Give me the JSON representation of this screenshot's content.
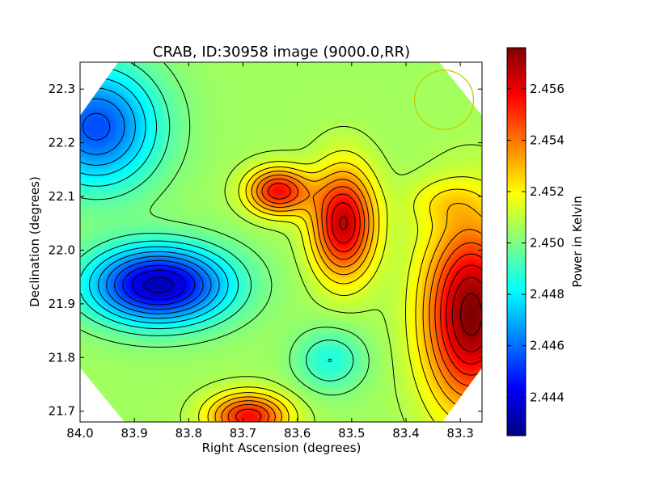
{
  "chart_data": {
    "type": "heatmap",
    "title": "CRAB, ID:30958 image (9000.0,RR)",
    "xlabel": "Right Ascension (degrees)",
    "ylabel": "Declination (degrees)",
    "colorbar_label": "Power in Kelvin",
    "colormap": "jet",
    "contours": true,
    "xlim": [
      84.0,
      83.26
    ],
    "ylim": [
      21.68,
      22.35
    ],
    "x_ticks": [
      84.0,
      83.9,
      83.8,
      83.7,
      83.6,
      83.5,
      83.4,
      83.3
    ],
    "x_tick_labels": [
      "84.0",
      "83.9",
      "83.8",
      "83.7",
      "83.6",
      "83.5",
      "83.4",
      "83.3"
    ],
    "y_ticks": [
      21.7,
      21.8,
      21.9,
      22.0,
      22.1,
      22.2,
      22.3
    ],
    "y_tick_labels": [
      "21.7",
      "21.8",
      "21.9",
      "22.0",
      "22.1",
      "22.2",
      "22.3"
    ],
    "colorbar_range": [
      2.4425,
      2.4576
    ],
    "colorbar_ticks": [
      2.444,
      2.446,
      2.448,
      2.45,
      2.452,
      2.454,
      2.456
    ],
    "colorbar_tick_labels": [
      "2.444",
      "2.446",
      "2.448",
      "2.450",
      "2.452",
      "2.454",
      "2.456"
    ],
    "map_features": [
      {
        "ra": 83.855,
        "dec": 21.935,
        "value": 2.4433,
        "spread_ra": 0.09,
        "spread_dec": 0.05,
        "description": "minimum"
      },
      {
        "ra": 83.97,
        "dec": 22.23,
        "value": 2.4455,
        "spread_ra": 0.08,
        "spread_dec": 0.08,
        "description": "low"
      },
      {
        "ra": 83.515,
        "dec": 22.05,
        "value": 2.4566,
        "spread_ra": 0.04,
        "spread_dec": 0.07,
        "description": "maximum"
      },
      {
        "ra": 83.635,
        "dec": 22.11,
        "value": 2.4556,
        "spread_ra": 0.04,
        "spread_dec": 0.03,
        "description": "peak"
      },
      {
        "ra": 83.28,
        "dec": 21.88,
        "value": 2.4576,
        "spread_ra": 0.06,
        "spread_dec": 0.12,
        "description": "maximum"
      },
      {
        "ra": 83.54,
        "dec": 21.795,
        "value": 2.4486,
        "spread_ra": 0.045,
        "spread_dec": 0.04,
        "description": "minimum"
      },
      {
        "ra": 83.33,
        "dec": 22.09,
        "value": 2.4516,
        "spread_ra": 0.05,
        "spread_dec": 0.03,
        "description": "minimum"
      },
      {
        "ra": 83.69,
        "dec": 21.69,
        "value": 2.4556,
        "spread_ra": 0.05,
        "spread_dec": 0.03,
        "description": "peak"
      }
    ],
    "beam_circle": {
      "ra": 83.33,
      "dec": 22.28,
      "radius_deg": 0.055,
      "color": "#c8c800"
    }
  }
}
